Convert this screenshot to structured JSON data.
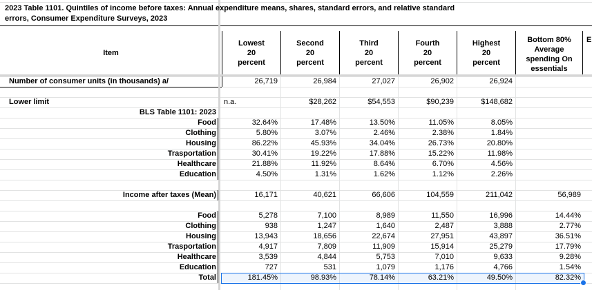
{
  "title_line1": "2023 Table 1101. Quintiles of income before taxes: Annual expenditure means, shares, standard errors, and relative standard",
  "title_line2": "errors, Consumer Expenditure Surveys, 2023",
  "headers": {
    "item": "Item",
    "lowest": [
      "Lowest",
      "20",
      "percent"
    ],
    "second": [
      "Second",
      "20",
      "percent"
    ],
    "third": [
      "Third",
      "20",
      "percent"
    ],
    "fourth": [
      "Fourth",
      "20",
      "percent"
    ],
    "highest": [
      "Highest",
      "20",
      "percent"
    ],
    "bottom80": [
      "Bottom 80%",
      "Average",
      "spending On",
      "essentials"
    ],
    "partial": "E"
  },
  "consumer_units": {
    "label": "Number of consumer units (in thousands) a/",
    "values": [
      "26,719",
      "26,984",
      "27,027",
      "26,902",
      "26,924"
    ]
  },
  "lower_limit": {
    "label": "Lower limit",
    "values": [
      "n.a.",
      "$28,262",
      "$54,553",
      "$90,239",
      "$148,682"
    ]
  },
  "bls_label": "BLS Table 1101: 2023",
  "shares": [
    {
      "label": "Food",
      "values": [
        "32.64%",
        "17.48%",
        "13.50%",
        "11.05%",
        "8.05%"
      ]
    },
    {
      "label": "Clothing",
      "values": [
        "5.80%",
        "3.07%",
        "2.46%",
        "2.38%",
        "1.84%"
      ]
    },
    {
      "label": "Housing",
      "values": [
        "86.22%",
        "45.93%",
        "34.04%",
        "26.73%",
        "20.80%"
      ]
    },
    {
      "label": "Trasportation",
      "values": [
        "30.41%",
        "19.22%",
        "17.88%",
        "15.22%",
        "11.98%"
      ]
    },
    {
      "label": "Healthcare",
      "values": [
        "21.88%",
        "11.92%",
        "8.64%",
        "6.70%",
        "4.56%"
      ]
    },
    {
      "label": "Education",
      "values": [
        "4.50%",
        "1.31%",
        "1.62%",
        "1.12%",
        "2.26%"
      ]
    }
  ],
  "income_after_taxes": {
    "label": "Income after taxes (Mean)",
    "values": [
      "16,171",
      "40,621",
      "66,606",
      "104,559",
      "211,042",
      "56,989"
    ]
  },
  "spending": [
    {
      "label": "Food",
      "values": [
        "5,278",
        "7,100",
        "8,989",
        "11,550",
        "16,996",
        "14.44%"
      ]
    },
    {
      "label": "Clothing",
      "values": [
        "938",
        "1,247",
        "1,640",
        "2,487",
        "3,888",
        "2.77%"
      ]
    },
    {
      "label": "Housing",
      "values": [
        "13,943",
        "18,656",
        "22,674",
        "27,951",
        "43,897",
        "36.51%"
      ]
    },
    {
      "label": "Trasportation",
      "values": [
        "4,917",
        "7,809",
        "11,909",
        "15,914",
        "25,279",
        "17.79%"
      ]
    },
    {
      "label": "Healthcare",
      "values": [
        "3,539",
        "4,844",
        "5,753",
        "7,010",
        "9,633",
        "9.28%"
      ]
    },
    {
      "label": "Education",
      "values": [
        "727",
        "531",
        "1,079",
        "1,176",
        "4,766",
        "1.54%"
      ]
    }
  ],
  "total": {
    "label": "Total",
    "values": [
      "181.45%",
      "98.93%",
      "78.14%",
      "63.21%",
      "49.50%",
      "82.32%"
    ]
  }
}
